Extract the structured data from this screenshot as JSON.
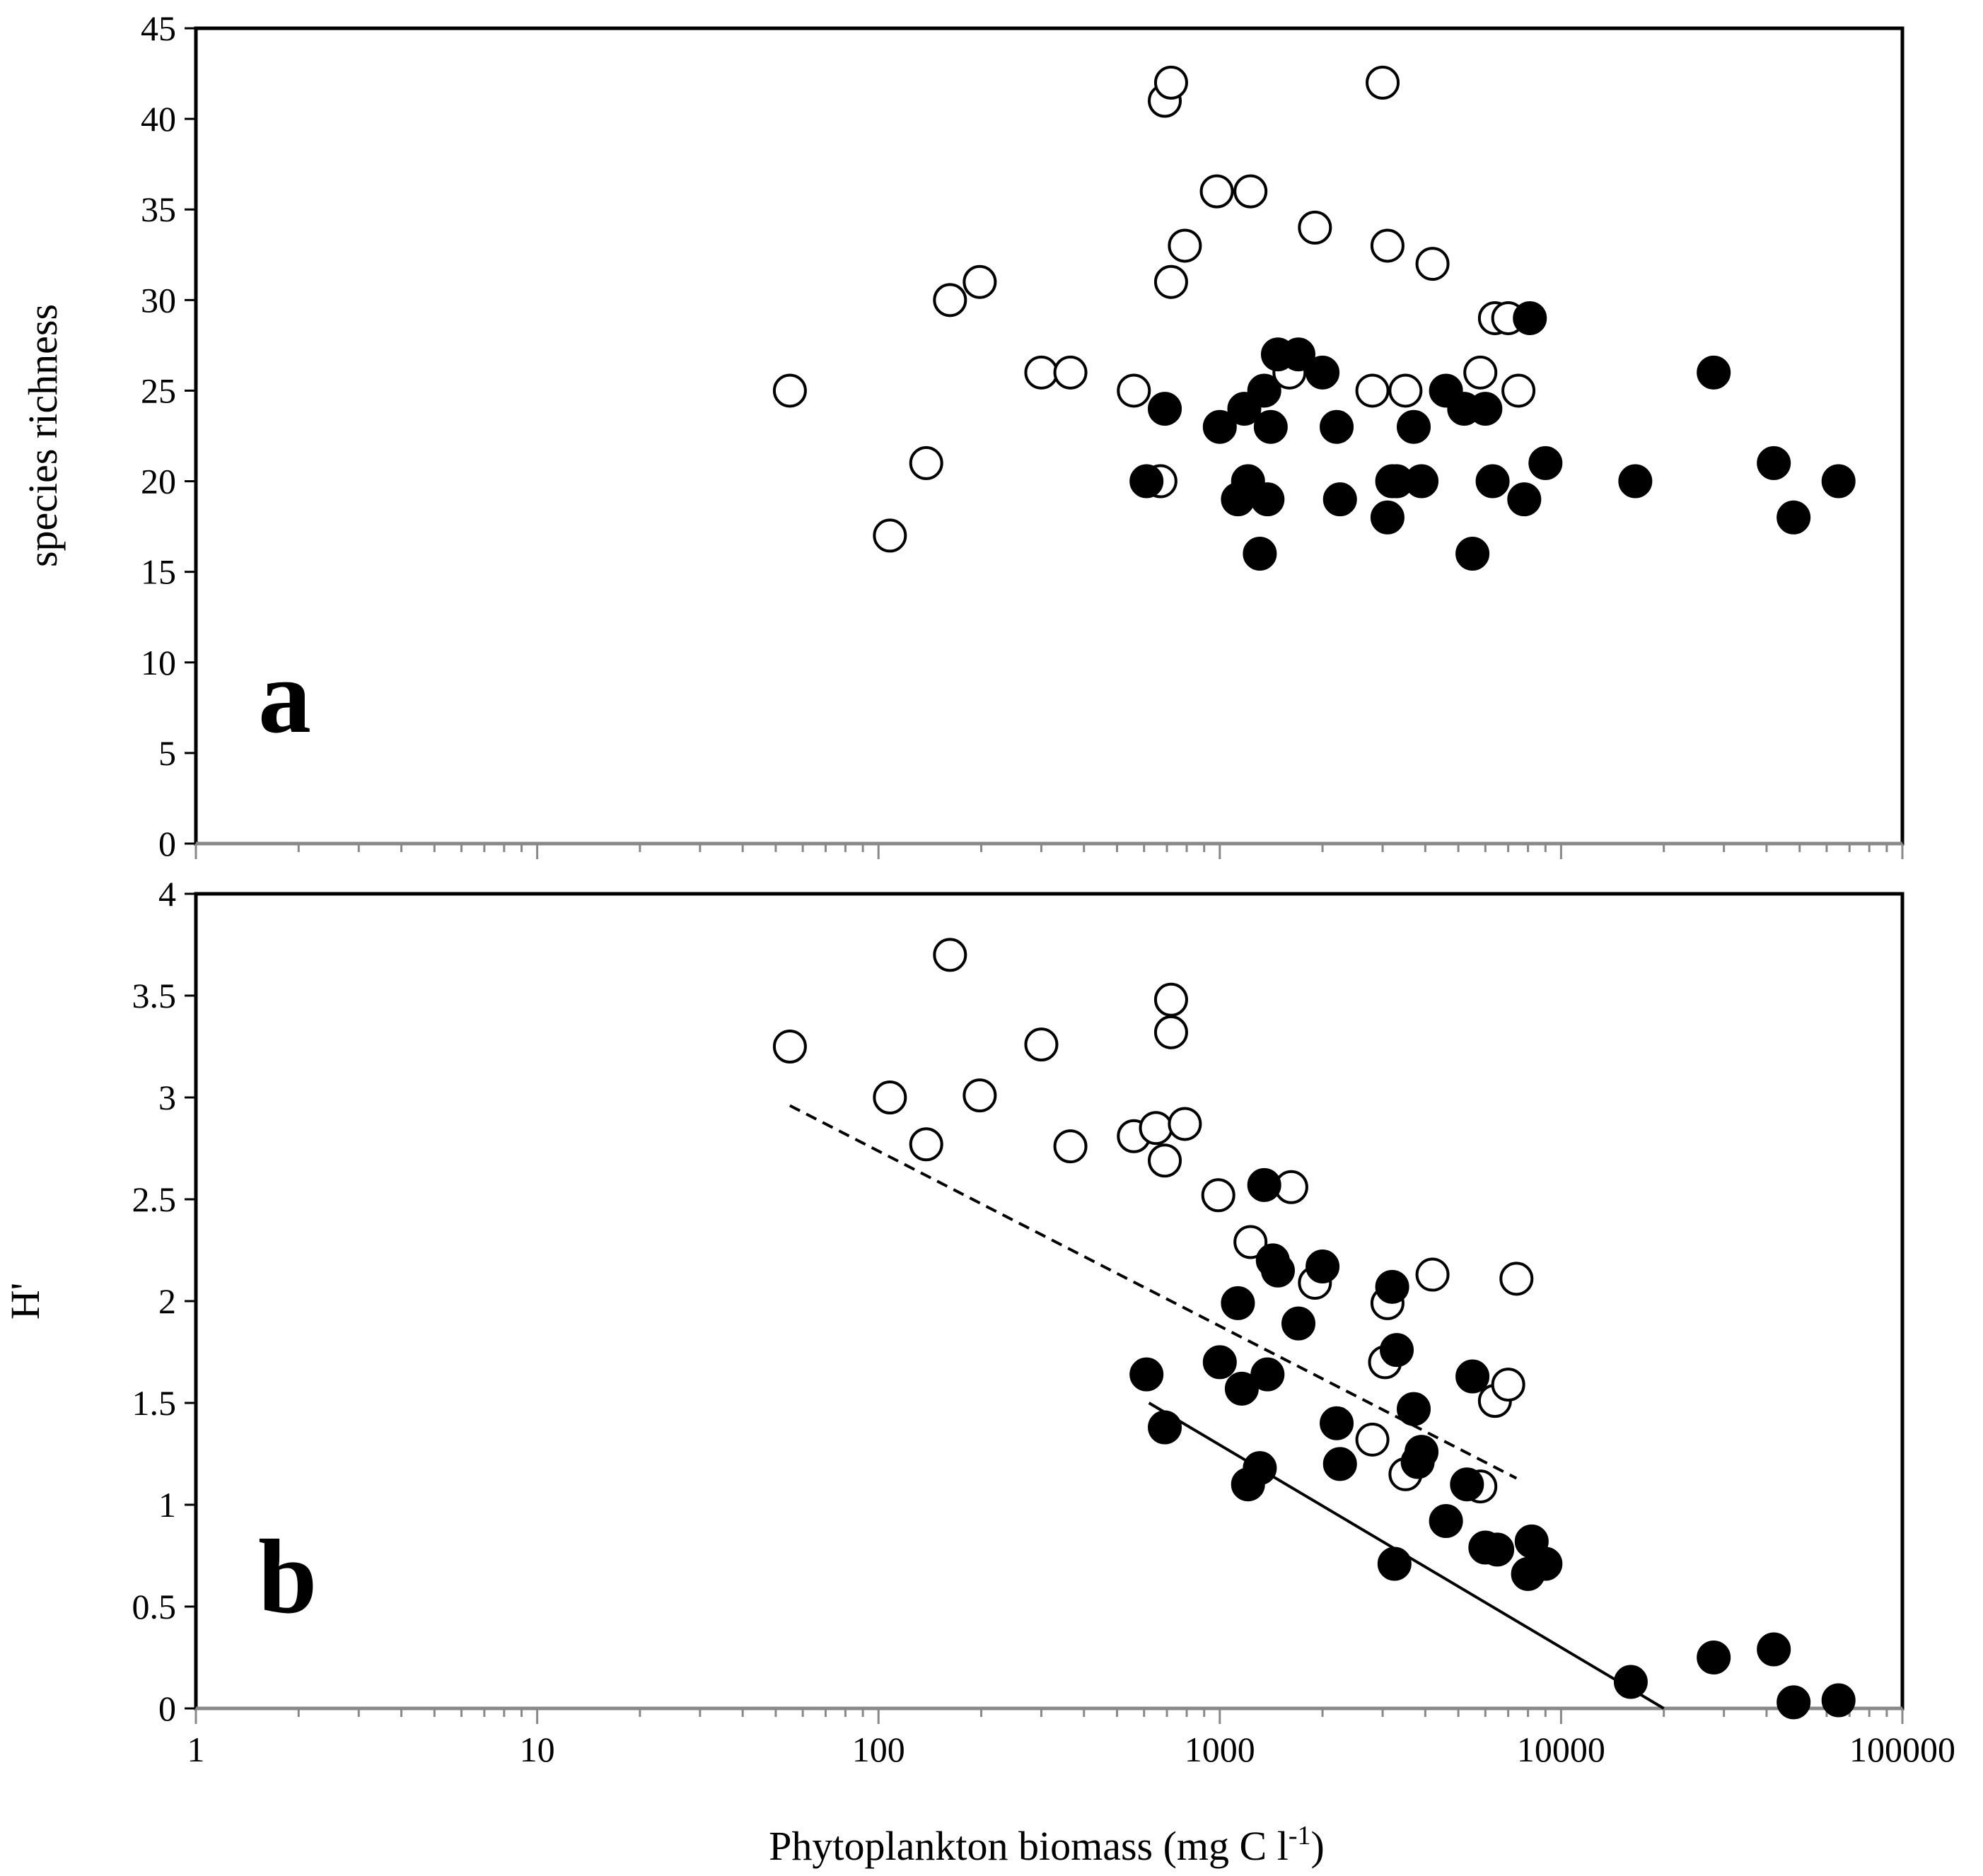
{
  "chart_data": [
    {
      "type": "scatter",
      "panel": "a",
      "ylabel": "species richness",
      "xscale": "log",
      "xlim": [
        1,
        100000
      ],
      "ylim": [
        0,
        45
      ],
      "yticks": [
        "0",
        "5",
        "10",
        "15",
        "20",
        "25",
        "30",
        "35",
        "40",
        "45"
      ],
      "series": [
        {
          "name": "open",
          "marker": "open-circle",
          "points": [
            [
              55,
              25
            ],
            [
              108,
              17
            ],
            [
              138,
              21
            ],
            [
              162,
              30
            ],
            [
              198,
              31
            ],
            [
              300,
              26
            ],
            [
              365,
              26
            ],
            [
              560,
              25
            ],
            [
              670,
              20
            ],
            [
              690,
              41
            ],
            [
              720,
              42
            ],
            [
              720,
              31
            ],
            [
              790,
              33
            ],
            [
              980,
              36
            ],
            [
              1230,
              36
            ],
            [
              1600,
              26
            ],
            [
              1900,
              34
            ],
            [
              2800,
              25
            ],
            [
              3000,
              42
            ],
            [
              3100,
              33
            ],
            [
              3500,
              25
            ],
            [
              4200,
              32
            ],
            [
              5800,
              26
            ],
            [
              6400,
              29
            ],
            [
              7000,
              29
            ],
            [
              7500,
              25
            ]
          ]
        },
        {
          "name": "filled",
          "marker": "filled-circle",
          "points": [
            [
              610,
              20
            ],
            [
              690,
              24
            ],
            [
              1000,
              23
            ],
            [
              1130,
              19
            ],
            [
              1180,
              24
            ],
            [
              1210,
              20
            ],
            [
              1310,
              16
            ],
            [
              1350,
              25
            ],
            [
              1380,
              19
            ],
            [
              1410,
              23
            ],
            [
              1480,
              27
            ],
            [
              1700,
              27
            ],
            [
              2000,
              26
            ],
            [
              2200,
              23
            ],
            [
              2250,
              19
            ],
            [
              3100,
              18
            ],
            [
              3200,
              20
            ],
            [
              3300,
              20
            ],
            [
              3700,
              23
            ],
            [
              3900,
              20
            ],
            [
              4600,
              25
            ],
            [
              5200,
              24
            ],
            [
              5500,
              16
            ],
            [
              6000,
              24
            ],
            [
              6300,
              20
            ],
            [
              7800,
              19
            ],
            [
              8100,
              29
            ],
            [
              9000,
              21
            ],
            [
              16500,
              20
            ],
            [
              28000,
              26
            ],
            [
              42000,
              21
            ],
            [
              48000,
              18
            ],
            [
              65000,
              20
            ]
          ]
        }
      ]
    },
    {
      "type": "scatter",
      "panel": "b",
      "ylabel": "H'",
      "xlabel": "Phytoplankton biomass (mg C l",
      "xlabel_sup": "-1",
      "xlabel_end": ")",
      "xscale": "log",
      "xlim": [
        1,
        100000
      ],
      "ylim": [
        0,
        4
      ],
      "yticks": [
        "0",
        "0.5",
        "1",
        "1.5",
        "2",
        "2.5",
        "3",
        "3.5",
        "4"
      ],
      "xticks": [
        "1",
        "10",
        "100",
        "1000",
        "10000",
        "100000"
      ],
      "series": [
        {
          "name": "open",
          "marker": "open-circle",
          "points": [
            [
              55,
              3.25
            ],
            [
              108,
              3.0
            ],
            [
              138,
              2.77
            ],
            [
              162,
              3.7
            ],
            [
              198,
              3.01
            ],
            [
              300,
              3.26
            ],
            [
              365,
              2.76
            ],
            [
              560,
              2.81
            ],
            [
              650,
              2.85
            ],
            [
              690,
              2.69
            ],
            [
              720,
              3.48
            ],
            [
              720,
              3.32
            ],
            [
              790,
              2.87
            ],
            [
              990,
              2.52
            ],
            [
              1230,
              2.29
            ],
            [
              1620,
              2.56
            ],
            [
              1900,
              2.09
            ],
            [
              2800,
              1.32
            ],
            [
              3050,
              1.7
            ],
            [
              3100,
              1.99
            ],
            [
              3500,
              1.15
            ],
            [
              4200,
              2.13
            ],
            [
              5800,
              1.09
            ],
            [
              6400,
              1.51
            ],
            [
              7000,
              1.59
            ],
            [
              7400,
              2.11
            ]
          ]
        },
        {
          "name": "filled",
          "marker": "filled-circle",
          "points": [
            [
              610,
              1.64
            ],
            [
              690,
              1.38
            ],
            [
              1000,
              1.7
            ],
            [
              1130,
              1.99
            ],
            [
              1160,
              1.57
            ],
            [
              1210,
              1.1
            ],
            [
              1310,
              1.18
            ],
            [
              1350,
              2.57
            ],
            [
              1380,
              1.64
            ],
            [
              1430,
              2.2
            ],
            [
              1480,
              2.15
            ],
            [
              1700,
              1.89
            ],
            [
              2000,
              2.17
            ],
            [
              2200,
              1.4
            ],
            [
              2250,
              1.2
            ],
            [
              3200,
              2.07
            ],
            [
              3250,
              0.71
            ],
            [
              3300,
              1.76
            ],
            [
              3700,
              1.47
            ],
            [
              3800,
              1.21
            ],
            [
              3900,
              1.26
            ],
            [
              4600,
              0.92
            ],
            [
              5300,
              1.1
            ],
            [
              5500,
              1.63
            ],
            [
              6000,
              0.79
            ],
            [
              6500,
              0.78
            ],
            [
              8000,
              0.66
            ],
            [
              8200,
              0.82
            ],
            [
              9000,
              0.71
            ],
            [
              16000,
              0.13
            ],
            [
              28000,
              0.25
            ],
            [
              42000,
              0.29
            ],
            [
              48000,
              0.03
            ],
            [
              65000,
              0.04
            ]
          ]
        }
      ],
      "trendlines": [
        {
          "name": "dashed-fit-open",
          "style": "dashed",
          "from": [
            55,
            2.96
          ],
          "to": [
            7400,
            1.13
          ]
        },
        {
          "name": "solid-fit-filled",
          "style": "solid",
          "from": [
            620,
            1.5
          ],
          "to": [
            20000,
            0.0
          ]
        }
      ]
    }
  ]
}
